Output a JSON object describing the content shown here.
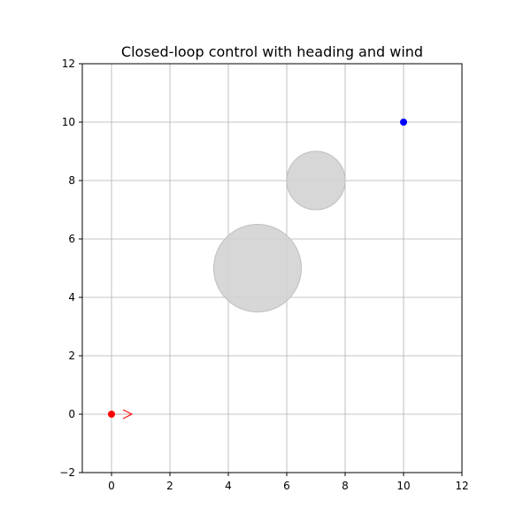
{
  "chart_data": {
    "type": "scatter",
    "title": "Closed-loop control with heading and wind",
    "xlabel": "",
    "ylabel": "",
    "xlim": [
      -1,
      12
    ],
    "ylim": [
      -2,
      12
    ],
    "xticks": [
      0,
      2,
      4,
      6,
      8,
      10,
      12
    ],
    "yticks": [
      -2,
      0,
      2,
      4,
      6,
      8,
      10,
      12
    ],
    "xtick_labels": [
      "0",
      "2",
      "4",
      "6",
      "8",
      "10",
      "12"
    ],
    "ytick_labels": [
      "−2",
      "0",
      "2",
      "4",
      "6",
      "8",
      "10",
      "12"
    ],
    "grid": true,
    "legend": "none",
    "obstacles": [
      {
        "x": 5,
        "y": 5,
        "r": 1.5
      },
      {
        "x": 7,
        "y": 8,
        "r": 1.0
      }
    ],
    "start": {
      "x": 0,
      "y": 0
    },
    "goal": {
      "x": 10,
      "y": 10
    },
    "heading": {
      "x": 0,
      "y": 0,
      "dx": 0.7,
      "dy": 0
    },
    "colors": {
      "start": "#ff0000",
      "goal": "#0000ff",
      "obstacle_fill": "#d3d3d3",
      "obstacle_edge": "#bfbfbf",
      "grid": "#b0b0b0",
      "heading": "#ff0000"
    }
  }
}
